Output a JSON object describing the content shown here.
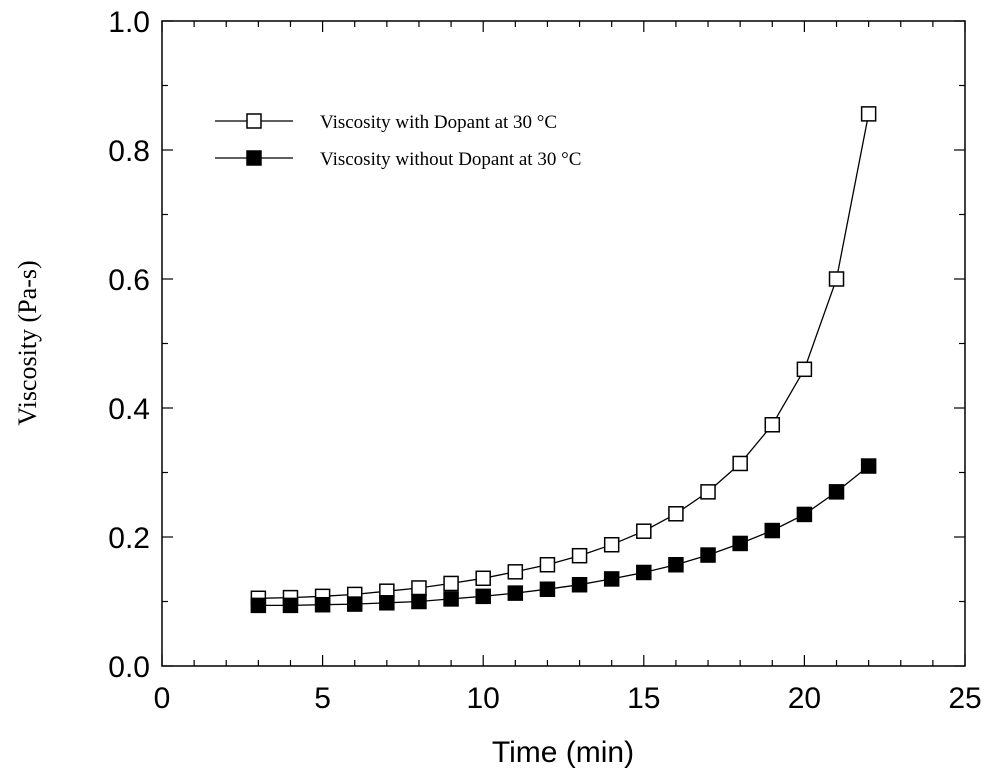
{
  "chart_data": {
    "type": "line",
    "title": "",
    "xlabel": "Time (min)",
    "ylabel": "Viscosity (Pa-s)",
    "xlim": [
      0,
      25
    ],
    "ylim": [
      0.0,
      1.0
    ],
    "x_ticks": [
      "0",
      "5",
      "10",
      "15",
      "20",
      "25"
    ],
    "y_ticks": [
      "0.0",
      "0.2",
      "0.4",
      "0.6",
      "0.8",
      "1.0"
    ],
    "grid": false,
    "legend_position": "top-left",
    "x": [
      3,
      4,
      5,
      6,
      7,
      8,
      9,
      10,
      11,
      12,
      13,
      14,
      15,
      16,
      17,
      18,
      19,
      20,
      21,
      22
    ],
    "series": [
      {
        "name": "Viscosity with Dopant at 30 °C",
        "marker": "open-square",
        "color": "#000000",
        "values": [
          0.105,
          0.106,
          0.108,
          0.111,
          0.116,
          0.121,
          0.128,
          0.136,
          0.146,
          0.157,
          0.171,
          0.188,
          0.209,
          0.236,
          0.27,
          0.314,
          0.374,
          0.46,
          0.6,
          0.856
        ]
      },
      {
        "name": "Viscosity without Dopant at 30 °C",
        "marker": "filled-square",
        "color": "#000000",
        "values": [
          0.094,
          0.094,
          0.095,
          0.096,
          0.098,
          0.1,
          0.104,
          0.108,
          0.113,
          0.119,
          0.126,
          0.135,
          0.145,
          0.157,
          0.172,
          0.19,
          0.21,
          0.235,
          0.27,
          0.31
        ]
      }
    ]
  }
}
